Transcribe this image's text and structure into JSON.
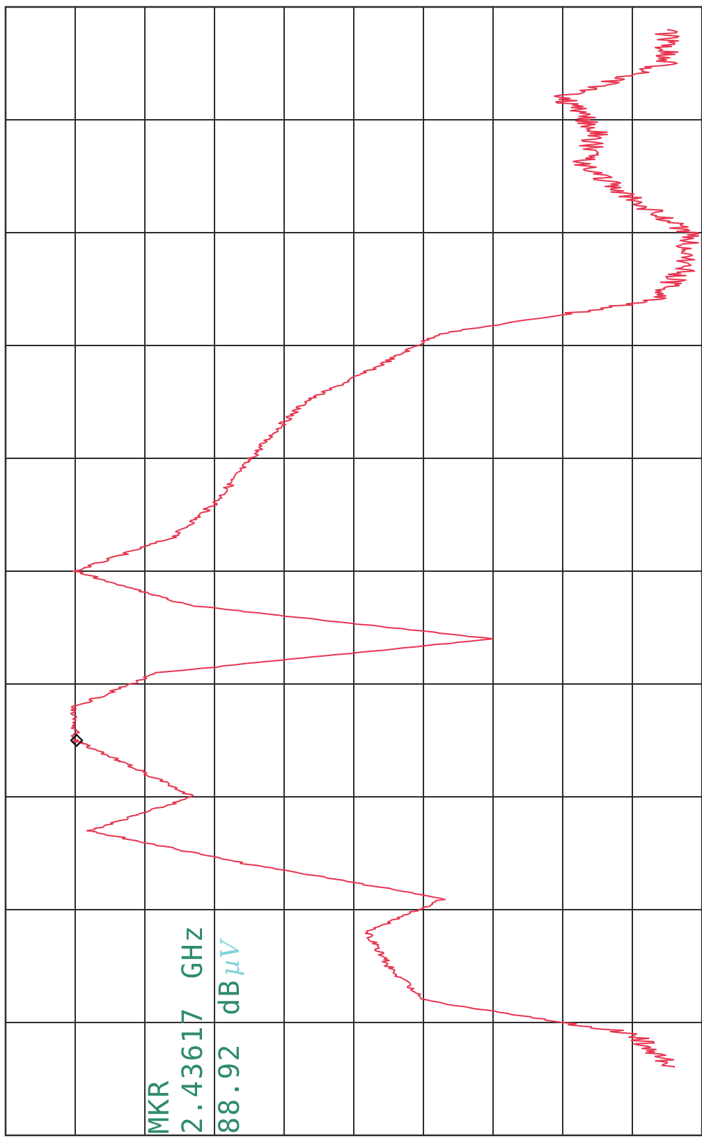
{
  "chart_data": {
    "type": "line",
    "title": "",
    "xlabel": "",
    "ylabel": "",
    "grid": true,
    "grid_divisions": {
      "along_frequency": 10,
      "along_level": 10
    },
    "orientation": "rotated 90° (frequency runs bottom-to-top, level increases to the left)",
    "marker": {
      "label": "MKR",
      "frequency": "2.43617",
      "frequency_unit": "GHz",
      "level": "88.92",
      "level_unit_prefix": "dB",
      "level_unit_suffix": "µV"
    },
    "series": [
      {
        "color": "#e8344f",
        "x_divisions": [
          0.6,
          0.9,
          1.2,
          1.5,
          1.8,
          2.1,
          2.4,
          2.7,
          3.0,
          3.3,
          3.5,
          3.8,
          4.1,
          4.4,
          4.7,
          5.0,
          5.3,
          5.6,
          5.9,
          6.2,
          6.5,
          6.8,
          7.1,
          7.4,
          7.7,
          8.0,
          8.3,
          8.6,
          8.9,
          9.2,
          9.5,
          9.8
        ],
        "y_divisions": [
          9.6,
          9.0,
          6.0,
          5.5,
          5.2,
          6.3,
          3.5,
          1.2,
          2.7,
          1.7,
          1.0,
          1.0,
          2.2,
          7.0,
          2.6,
          1.0,
          2.4,
          3.0,
          3.4,
          3.8,
          4.3,
          5.3,
          6.2,
          9.3,
          9.8,
          9.8,
          9.0,
          8.3,
          8.5,
          8.0,
          9.5,
          9.5
        ]
      }
    ]
  }
}
